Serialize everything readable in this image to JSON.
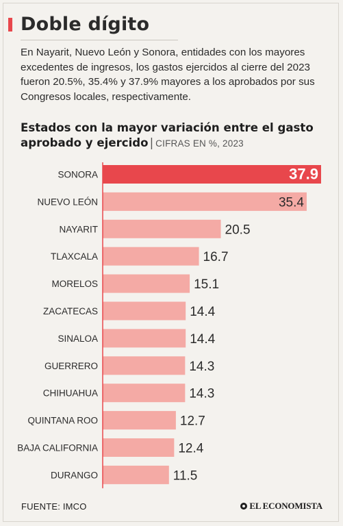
{
  "header": {
    "title": "Doble dígito",
    "intro": "En Nayarit, Nuevo León y Sonora, entidades con los mayores excedentes de ingresos, los gastos ejercidos al cierre del 2023 fueron 20.5%, 35.4% y 37.9% mayores a los aprobados por sus Congresos locales, respectivamente."
  },
  "chart_data": {
    "type": "bar",
    "orientation": "horizontal",
    "title": "Estados con la mayor variación entre el gasto aprobado y ejercido",
    "subtitle": "CIFRAS EN %, 2023",
    "categories": [
      "SONORA",
      "NUEVO LEÓN",
      "NAYARIT",
      "TLAXCALA",
      "MORELOS",
      "ZACATECAS",
      "SINALOA",
      "GUERRERO",
      "CHIHUAHUA",
      "QUINTANA ROO",
      "BAJA CALIFORNIA",
      "DURANGO"
    ],
    "values": [
      37.9,
      35.4,
      20.5,
      16.7,
      15.1,
      14.4,
      14.4,
      14.3,
      14.3,
      12.7,
      12.4,
      11.5
    ],
    "value_labels": [
      "37.9",
      "35.4",
      "20.5",
      "16.7",
      "15.1",
      "14.4",
      "14.4",
      "14.3",
      "14.3",
      "12.7",
      "12.4",
      "11.5"
    ],
    "xlim": [
      0,
      37.9
    ],
    "highlight_category": "SONORA",
    "colors": {
      "highlight_bar": "#e8474c",
      "bar": "#f4aaa5",
      "axis_line": "#e8474c",
      "highlight_label": "#ffffff",
      "label": "#2b2b2b"
    }
  },
  "footer": {
    "source": "FUENTE: IMCO",
    "brand": "EL ECONOMISTA"
  }
}
